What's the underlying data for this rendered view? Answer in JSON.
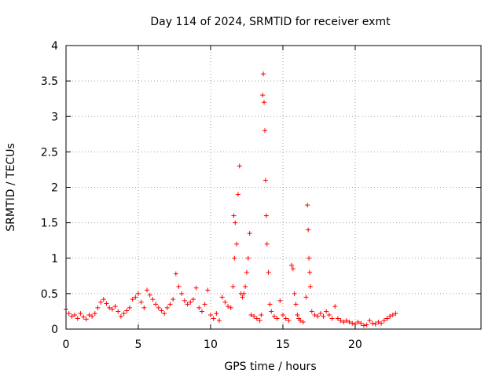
{
  "chart_data": {
    "type": "scatter",
    "title": "Day 114 of 2024, SRMTID for receiver exmt",
    "xlabel": "GPS time / hours",
    "ylabel": "SRMTID / TECUs",
    "xlim": [
      0,
      28.7
    ],
    "ylim": [
      0,
      4
    ],
    "xticks": [
      0,
      5,
      10,
      15,
      20
    ],
    "xtick_labels": [
      "0",
      "5",
      "10",
      "15",
      "20"
    ],
    "yticks": [
      0,
      0.5,
      1,
      1.5,
      2,
      2.5,
      3,
      3.5,
      4
    ],
    "ytick_labels": [
      "0",
      "0.5",
      "1",
      "1.5",
      "2",
      "2.5",
      "3",
      "3.5",
      "4"
    ],
    "grid": true,
    "marker": "plus",
    "color": "#ff0000",
    "series": [
      {
        "name": "SRMTID",
        "x": [
          0.0,
          0.2,
          0.4,
          0.6,
          0.8,
          1.0,
          1.2,
          1.4,
          1.6,
          1.8,
          2.0,
          2.2,
          2.4,
          2.6,
          2.8,
          3.0,
          3.2,
          3.4,
          3.6,
          3.8,
          4.0,
          4.2,
          4.4,
          4.6,
          4.8,
          5.0,
          5.2,
          5.4,
          5.6,
          5.8,
          6.0,
          6.2,
          6.4,
          6.6,
          6.8,
          7.0,
          7.2,
          7.4,
          7.6,
          7.8,
          8.0,
          8.2,
          8.4,
          8.6,
          8.8,
          9.0,
          9.2,
          9.4,
          9.6,
          9.8,
          10.0,
          10.2,
          10.4,
          10.6,
          10.8,
          11.0,
          11.2,
          11.4,
          11.55,
          11.6,
          11.65,
          11.7,
          11.8,
          11.9,
          12.0,
          12.1,
          12.2,
          12.3,
          12.4,
          12.5,
          12.6,
          12.7,
          12.8,
          13.0,
          13.2,
          13.4,
          13.5,
          13.6,
          13.65,
          13.7,
          13.75,
          13.8,
          13.85,
          13.9,
          14.0,
          14.1,
          14.2,
          14.4,
          14.6,
          14.8,
          15.0,
          15.2,
          15.4,
          15.6,
          15.7,
          15.8,
          15.9,
          16.0,
          16.1,
          16.2,
          16.4,
          16.6,
          16.7,
          16.75,
          16.8,
          16.85,
          16.9,
          17.0,
          17.2,
          17.4,
          17.6,
          17.8,
          18.0,
          18.2,
          18.4,
          18.6,
          18.8,
          19.0,
          19.2,
          19.4,
          19.6,
          19.8,
          20.0,
          20.2,
          20.4,
          20.6,
          20.8,
          21.0,
          21.2,
          21.4,
          21.6,
          21.8,
          22.0,
          22.2,
          22.4,
          22.6,
          22.8
        ],
        "y": [
          0.28,
          0.22,
          0.18,
          0.2,
          0.15,
          0.22,
          0.17,
          0.14,
          0.2,
          0.18,
          0.22,
          0.3,
          0.38,
          0.42,
          0.36,
          0.3,
          0.28,
          0.32,
          0.25,
          0.18,
          0.22,
          0.26,
          0.3,
          0.42,
          0.45,
          0.5,
          0.38,
          0.3,
          0.55,
          0.48,
          0.42,
          0.35,
          0.3,
          0.26,
          0.22,
          0.3,
          0.35,
          0.42,
          0.78,
          0.6,
          0.5,
          0.4,
          0.35,
          0.38,
          0.42,
          0.58,
          0.3,
          0.25,
          0.35,
          0.55,
          0.2,
          0.15,
          0.22,
          0.12,
          0.45,
          0.38,
          0.32,
          0.3,
          0.6,
          1.6,
          1.0,
          1.5,
          1.2,
          1.9,
          2.3,
          0.5,
          0.45,
          0.5,
          0.6,
          0.8,
          1.0,
          1.35,
          0.2,
          0.18,
          0.15,
          0.12,
          0.2,
          3.3,
          3.6,
          3.2,
          2.8,
          2.1,
          1.6,
          1.2,
          0.8,
          0.35,
          0.25,
          0.18,
          0.15,
          0.4,
          0.2,
          0.15,
          0.12,
          0.9,
          0.85,
          0.5,
          0.35,
          0.2,
          0.15,
          0.12,
          0.1,
          0.45,
          1.75,
          1.4,
          1.0,
          0.8,
          0.6,
          0.25,
          0.2,
          0.18,
          0.22,
          0.18,
          0.25,
          0.2,
          0.15,
          0.32,
          0.15,
          0.12,
          0.1,
          0.12,
          0.1,
          0.08,
          0.07,
          0.1,
          0.08,
          0.05,
          0.06,
          0.12,
          0.08,
          0.07,
          0.1,
          0.08,
          0.12,
          0.15,
          0.18,
          0.2,
          0.22
        ]
      }
    ]
  }
}
